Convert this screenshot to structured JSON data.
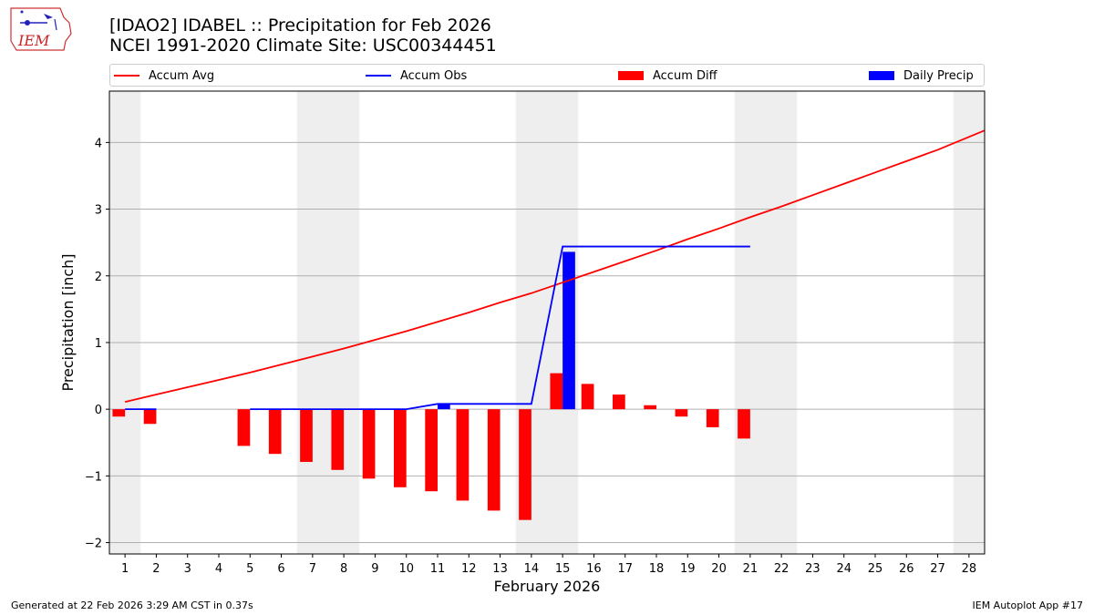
{
  "header": {
    "title_line1": "[IDAO2] IDABEL :: Precipitation for Feb 2026",
    "title_line2": "NCEI 1991-2020 Climate Site: USC00344451"
  },
  "logo": {
    "text": "IEM"
  },
  "legend": {
    "items": [
      {
        "label": "Accum Avg",
        "color": "#ff0000",
        "kind": "line"
      },
      {
        "label": "Accum Obs",
        "color": "#0000ff",
        "kind": "line"
      },
      {
        "label": "Accum Diff",
        "color": "#ff0000",
        "kind": "patch"
      },
      {
        "label": "Daily Precip",
        "color": "#0000ff",
        "kind": "patch"
      }
    ]
  },
  "footer": {
    "left": "Generated at 22 Feb 2026 3:29 AM CST in 0.37s",
    "right": "IEM Autoplot App #17"
  },
  "chart_data": {
    "type": "bar",
    "title": "[IDAO2] IDABEL :: Precipitation for Feb 2026",
    "subtitle": "NCEI 1991-2020 Climate Site: USC00344451",
    "xlabel": "February 2026",
    "ylabel": "Precipitation [inch]",
    "xlim": [
      0.5,
      28.5
    ],
    "ylim": [
      -2.17,
      4.77
    ],
    "xticks": [
      1,
      2,
      3,
      4,
      5,
      6,
      7,
      8,
      9,
      10,
      11,
      12,
      13,
      14,
      15,
      16,
      17,
      18,
      19,
      20,
      21,
      22,
      23,
      24,
      25,
      26,
      27,
      28
    ],
    "xtick_labels": [
      "1",
      "2",
      "3",
      "4",
      "5",
      "6",
      "7",
      "8",
      "9",
      "10",
      "11",
      "12",
      "13",
      "14",
      "15",
      "16",
      "17",
      "18",
      "19",
      "20",
      "21",
      "22",
      "23",
      "24",
      "25",
      "26",
      "27",
      "28"
    ],
    "yticks": [
      -2,
      -1,
      0,
      1,
      2,
      3,
      4
    ],
    "ytick_labels": [
      "−2",
      "−1",
      "0",
      "1",
      "2",
      "3",
      "4"
    ],
    "grid": "horizontal",
    "weekend_shading": [
      [
        0.5,
        1.5
      ],
      [
        6.5,
        8.5
      ],
      [
        13.5,
        15.5
      ],
      [
        20.5,
        22.5
      ],
      [
        27.5,
        28.5
      ]
    ],
    "shade_color": "#eeeeee",
    "series": [
      {
        "name": "Accum Avg",
        "type": "line",
        "color": "#ff0000",
        "x": [
          1,
          2,
          3,
          4,
          5,
          6,
          7,
          8,
          9,
          10,
          11,
          12,
          13,
          14,
          15,
          16,
          17,
          18,
          19,
          20,
          21,
          22,
          23,
          24,
          25,
          26,
          27,
          28.5
        ],
        "values": [
          0.11,
          0.22,
          0.33,
          0.44,
          0.55,
          0.67,
          0.79,
          0.91,
          1.04,
          1.17,
          1.31,
          1.45,
          1.6,
          1.74,
          1.9,
          2.06,
          2.22,
          2.38,
          2.55,
          2.71,
          2.88,
          3.04,
          3.21,
          3.38,
          3.55,
          3.72,
          3.89,
          4.18
        ]
      },
      {
        "name": "Accum Obs",
        "type": "line",
        "color": "#0000ff",
        "x": [
          1,
          2,
          5,
          6,
          7,
          8,
          9,
          10,
          11,
          12,
          13,
          14,
          15,
          16,
          17,
          18,
          19,
          20,
          21
        ],
        "values": [
          0,
          0,
          0,
          0,
          0,
          0,
          0,
          0,
          0.08,
          0.08,
          0.08,
          0.08,
          2.44,
          2.44,
          2.44,
          2.44,
          2.44,
          2.44,
          2.44
        ],
        "segments": [
          [
            0,
            1
          ],
          [
            2,
            18
          ]
        ]
      },
      {
        "name": "Accum Diff",
        "type": "bar",
        "color": "#ff0000",
        "x": [
          1,
          2,
          5,
          6,
          7,
          8,
          9,
          10,
          11,
          12,
          13,
          14,
          15,
          16,
          17,
          18,
          19,
          20,
          21
        ],
        "values": [
          -0.11,
          -0.22,
          -0.55,
          -0.67,
          -0.79,
          -0.91,
          -1.04,
          -1.17,
          -1.23,
          -1.37,
          -1.52,
          -1.66,
          0.54,
          0.38,
          0.22,
          0.06,
          -0.11,
          -0.27,
          -0.44
        ]
      },
      {
        "name": "Daily Precip",
        "type": "bar",
        "color": "#0000ff",
        "x": [
          11,
          15
        ],
        "values": [
          0.08,
          2.36
        ]
      }
    ]
  }
}
